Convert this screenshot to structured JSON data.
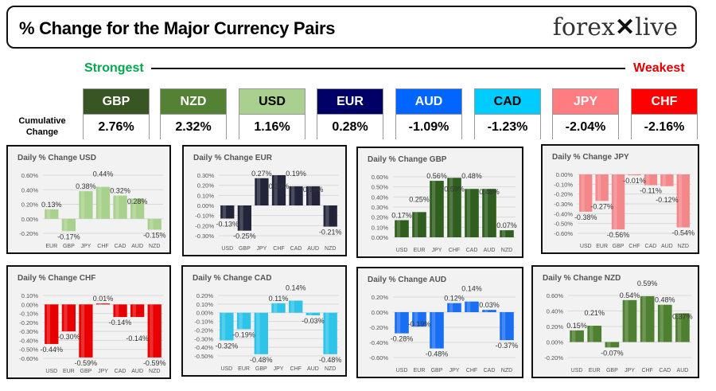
{
  "header": {
    "title": "% Change for the Major Currency Pairs",
    "logo": "forexlive",
    "strongest": "Strongest",
    "weakest": "Weakest",
    "cumulative_label": "Cumulative Change"
  },
  "currencies": [
    {
      "code": "GBP",
      "value": "2.76%",
      "color": "#375623",
      "text": "#ffffff"
    },
    {
      "code": "NZD",
      "value": "2.32%",
      "color": "#548235",
      "text": "#ffffff"
    },
    {
      "code": "USD",
      "value": "1.16%",
      "color": "#a9d08e",
      "text": "#000000"
    },
    {
      "code": "EUR",
      "value": "0.28%",
      "color": "#000066",
      "text": "#ffffff"
    },
    {
      "code": "AUD",
      "value": "-1.09%",
      "color": "#0066ff",
      "text": "#ffffff"
    },
    {
      "code": "CAD",
      "value": "-1.23%",
      "color": "#00ccff",
      "text": "#000000"
    },
    {
      "code": "JPY",
      "value": "-2.04%",
      "color": "#ff7c80",
      "text": "#ffffff"
    },
    {
      "code": "CHF",
      "value": "-2.16%",
      "color": "#ff0000",
      "text": "#ffffff"
    }
  ],
  "chart_data": [
    {
      "type": "bar",
      "title": "Daily % Change USD",
      "categories": [
        "EUR",
        "GBP",
        "JPY",
        "CHF",
        "CAD",
        "AUD",
        "NZD"
      ],
      "values": [
        0.13,
        -0.17,
        0.38,
        0.44,
        0.32,
        0.28,
        -0.15
      ],
      "ylim": [
        -0.2,
        0.6
      ],
      "ystep": 0.2,
      "color": "#a9d18e",
      "grid": true
    },
    {
      "type": "bar",
      "title": "Daily % Change EUR",
      "categories": [
        "USD",
        "GBP",
        "JPY",
        "CHF",
        "CAD",
        "AUD",
        "NZD"
      ],
      "values": [
        -0.13,
        -0.25,
        0.27,
        0.3,
        0.19,
        0.19,
        -0.21
      ],
      "ylim": [
        -0.3,
        0.3
      ],
      "ystep": 0.1,
      "color": "#22253a",
      "grid": true
    },
    {
      "type": "bar",
      "title": "Daily % Change GBP",
      "categories": [
        "USD",
        "EUR",
        "JPY",
        "CHF",
        "CAD",
        "AUD",
        "NZD"
      ],
      "values": [
        0.17,
        0.25,
        0.56,
        0.59,
        0.48,
        0.48,
        0.07
      ],
      "ylim": [
        0,
        0.6
      ],
      "ystep": 0.1,
      "color": "#2f5e1e",
      "grid": true
    },
    {
      "type": "bar",
      "title": "Daily % Change JPY",
      "categories": [
        "USD",
        "EUR",
        "GBP",
        "CHF",
        "CAD",
        "AUD",
        "NZD"
      ],
      "values": [
        -0.38,
        -0.27,
        -0.56,
        -0.01,
        -0.11,
        -0.12,
        -0.54
      ],
      "ylim": [
        -0.6,
        0
      ],
      "ystep": 0.1,
      "color": "#f4878a",
      "grid": true
    },
    {
      "type": "bar",
      "title": "Daily % Change CHF",
      "categories": [
        "USD",
        "EUR",
        "GBP",
        "JPY",
        "CAD",
        "AUD",
        "NZD"
      ],
      "values": [
        -0.44,
        -0.3,
        -0.59,
        0.01,
        -0.14,
        -0.14,
        -0.59
      ],
      "ylim": [
        -0.6,
        0.1
      ],
      "ystep": 0.1,
      "color": "#e80000",
      "grid": true
    },
    {
      "type": "bar",
      "title": "Daily % Change CAD",
      "categories": [
        "USD",
        "EUR",
        "GBP",
        "JPY",
        "CHF",
        "AUD",
        "NZD"
      ],
      "values": [
        -0.32,
        -0.19,
        -0.48,
        0.11,
        0.14,
        -0.03,
        -0.48
      ],
      "ylim": [
        -0.5,
        0.2
      ],
      "ystep": 0.1,
      "color": "#2ec4ea",
      "grid": true
    },
    {
      "type": "bar",
      "title": "Daily % Change AUD",
      "categories": [
        "USD",
        "EUR",
        "GBP",
        "JPY",
        "CHF",
        "CAD",
        "NZD"
      ],
      "values": [
        -0.28,
        -0.19,
        -0.48,
        0.12,
        0.14,
        0.03,
        -0.37
      ],
      "ylim": [
        -0.6,
        0.2
      ],
      "ystep": 0.2,
      "color": "#1a6ef2",
      "grid": true
    },
    {
      "type": "bar",
      "title": "Daily % Change NZD",
      "categories": [
        "USD",
        "EUR",
        "GBP",
        "JPY",
        "CHF",
        "CAD",
        "AUD"
      ],
      "values": [
        0.15,
        0.21,
        -0.07,
        0.54,
        0.59,
        0.48,
        0.37
      ],
      "ylim": [
        -0.2,
        0.6
      ],
      "ystep": 0.2,
      "color": "#4f7f30",
      "grid": true
    }
  ]
}
